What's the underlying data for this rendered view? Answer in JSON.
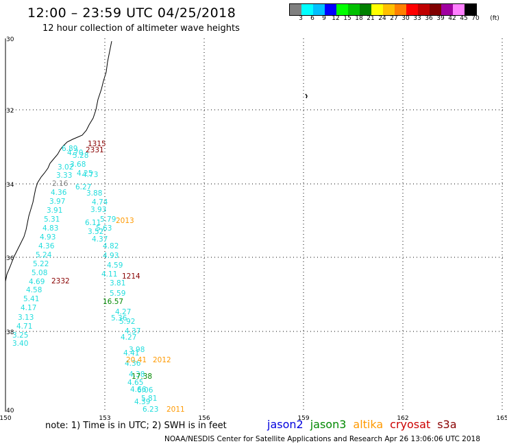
{
  "title": "12:00 – 23:59 UTC 04/25/2018",
  "subtitle": "12 hour collection of altimeter wave heights",
  "colorbar": {
    "colors": [
      "#808080",
      "#00ffff",
      "#00c0ff",
      "#0000ff",
      "#00ff00",
      "#00c000",
      "#008000",
      "#ffff00",
      "#ffc000",
      "#ff8000",
      "#ff0000",
      "#c00000",
      "#800000",
      "#a000a0",
      "#ff80ff",
      "#000000"
    ],
    "labels": [
      "3",
      "6",
      "9",
      "12",
      "15",
      "18",
      "21",
      "24",
      "27",
      "30",
      "33",
      "36",
      "39",
      "42",
      "45",
      "70"
    ],
    "unit": "(ft)"
  },
  "axes": {
    "lat_labels": [
      "30",
      "32",
      "34",
      "36",
      "38",
      "40"
    ],
    "lon_labels": [
      "150",
      "153",
      "156",
      "159",
      "162",
      "165"
    ]
  },
  "colors": {
    "jason2": "#0000dd",
    "jason3": "#008800",
    "altika": "#ff9900",
    "cryosat": "#cc0000",
    "s3a": "#880000",
    "cyan": "#22dddd",
    "gray": "#888888"
  },
  "points": {
    "left": [
      "2.16",
      "4.36",
      "3.97",
      "3.91",
      "5.31",
      "4.83",
      "4.93",
      "4.36",
      "5.24",
      "5.22",
      "5.08",
      "4.69",
      "4.58",
      "5.41",
      "4.17",
      "3.13",
      "4.71",
      "3.25",
      "3.40",
      "3.33",
      "3.02"
    ],
    "middle": [
      "6.27",
      "4.73",
      "3.88",
      "4.74",
      "3.93",
      "5.79",
      "6.11",
      "5.63",
      "3.52",
      "4.82",
      "4.37",
      "4.93",
      "4.59",
      "4.11",
      "3.81",
      "5.59",
      "5.36",
      "4.27",
      "5.92",
      "4.37",
      "4.27",
      "3.98",
      "4.41",
      "4.36",
      "4.38",
      "4.65",
      "4.66",
      "6.06",
      "5.81",
      "4.39",
      "6.23",
      "5.28",
      "4.70",
      "3.68",
      "6.89",
      "4.25"
    ],
    "green": [
      "16.57",
      "17.38"
    ],
    "orange_small": [
      "20.41"
    ],
    "time_labels": [
      {
        "text": "1315",
        "color": "s3a"
      },
      {
        "text": "2331",
        "color": "s3a"
      },
      {
        "text": "2013",
        "color": "altika"
      },
      {
        "text": "2332",
        "color": "s3a"
      },
      {
        "text": "1214",
        "color": "s3a"
      },
      {
        "text": "2012",
        "color": "altika"
      },
      {
        "text": "2011",
        "color": "altika"
      }
    ]
  },
  "note": "note: 1) Time is in UTC; 2) SWH is in feet",
  "legend": [
    {
      "label": "jason2",
      "color": "jason2"
    },
    {
      "label": "jason3",
      "color": "jason3"
    },
    {
      "label": "altika",
      "color": "altika"
    },
    {
      "label": "cryosat",
      "color": "cryosat"
    },
    {
      "label": "s3a",
      "color": "s3a"
    }
  ],
  "credit": "NOAA/NESDIS Center for Satellite Applications and Research     Apr 26 13:06:06 UTC 2018"
}
